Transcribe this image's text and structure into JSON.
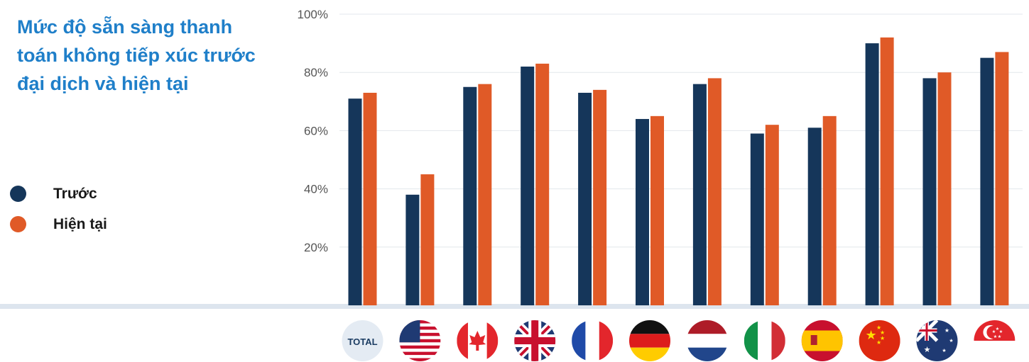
{
  "chart_data": {
    "type": "bar",
    "title": "Mức độ sẵn sàng thanh toán không tiếp xúc trước đại dịch và hiện tại",
    "categories": [
      "TOTAL",
      "US",
      "CA",
      "UK",
      "FR",
      "DE",
      "NL",
      "IT",
      "ES",
      "CN",
      "AU",
      "SG"
    ],
    "series": [
      {
        "name": "Trước",
        "color": "#15365a",
        "values": [
          71,
          38,
          75,
          82,
          73,
          64,
          76,
          59,
          61,
          90,
          78,
          85
        ]
      },
      {
        "name": "Hiện tại",
        "color": "#e05a27",
        "values": [
          73,
          45,
          76,
          83,
          74,
          65,
          78,
          62,
          65,
          92,
          80,
          87
        ]
      }
    ],
    "y_ticks": [
      "20%",
      "40%",
      "60%",
      "80%",
      "100%"
    ],
    "ylim": [
      0,
      100
    ],
    "grid": true,
    "legend_position": "left",
    "flag_icons": [
      "total-badge-icon",
      "us-flag-icon",
      "canada-flag-icon",
      "uk-flag-icon",
      "france-flag-icon",
      "germany-flag-icon",
      "netherlands-flag-icon",
      "italy-flag-icon",
      "spain-flag-icon",
      "china-flag-icon",
      "australia-flag-icon",
      "singapore-flag-icon"
    ]
  }
}
